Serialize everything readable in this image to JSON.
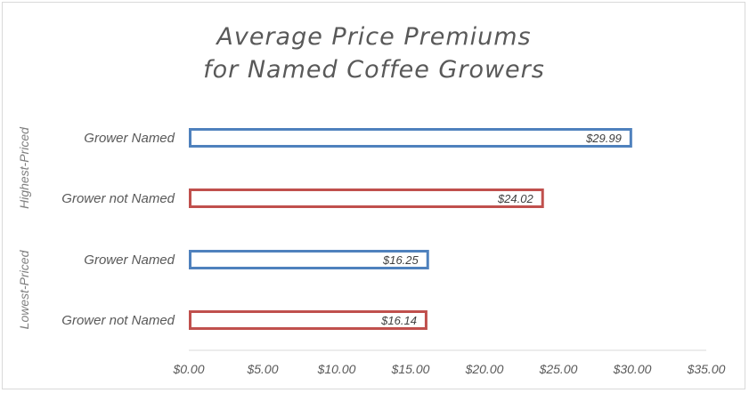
{
  "chart_data": {
    "type": "bar",
    "orientation": "horizontal",
    "title_lines": [
      "Average Price Premiums",
      "for Named Coffee Growers"
    ],
    "groups": [
      {
        "label": "Highest-Priced",
        "bars": [
          {
            "category": "Grower Named",
            "value": 29.99,
            "data_label": "$29.99",
            "color": "#4f81bd"
          },
          {
            "category": "Grower not Named",
            "value": 24.02,
            "data_label": "$24.02",
            "color": "#c0504d"
          }
        ]
      },
      {
        "label": "Lowest-Priced",
        "bars": [
          {
            "category": "Grower Named",
            "value": 16.25,
            "data_label": "$16.25",
            "color": "#4f81bd"
          },
          {
            "category": "Grower not Named",
            "value": 16.14,
            "data_label": "$16.14",
            "color": "#c0504d"
          }
        ]
      }
    ],
    "xlim": [
      0,
      35
    ],
    "xticks": [
      0,
      5,
      10,
      15,
      20,
      25,
      30,
      35
    ],
    "xtick_labels": [
      "$0.00",
      "$5.00",
      "$10.00",
      "$15.00",
      "$20.00",
      "$25.00",
      "$30.00",
      "$35.00"
    ],
    "bar_style": "outline",
    "grid": false,
    "legend": "none"
  }
}
